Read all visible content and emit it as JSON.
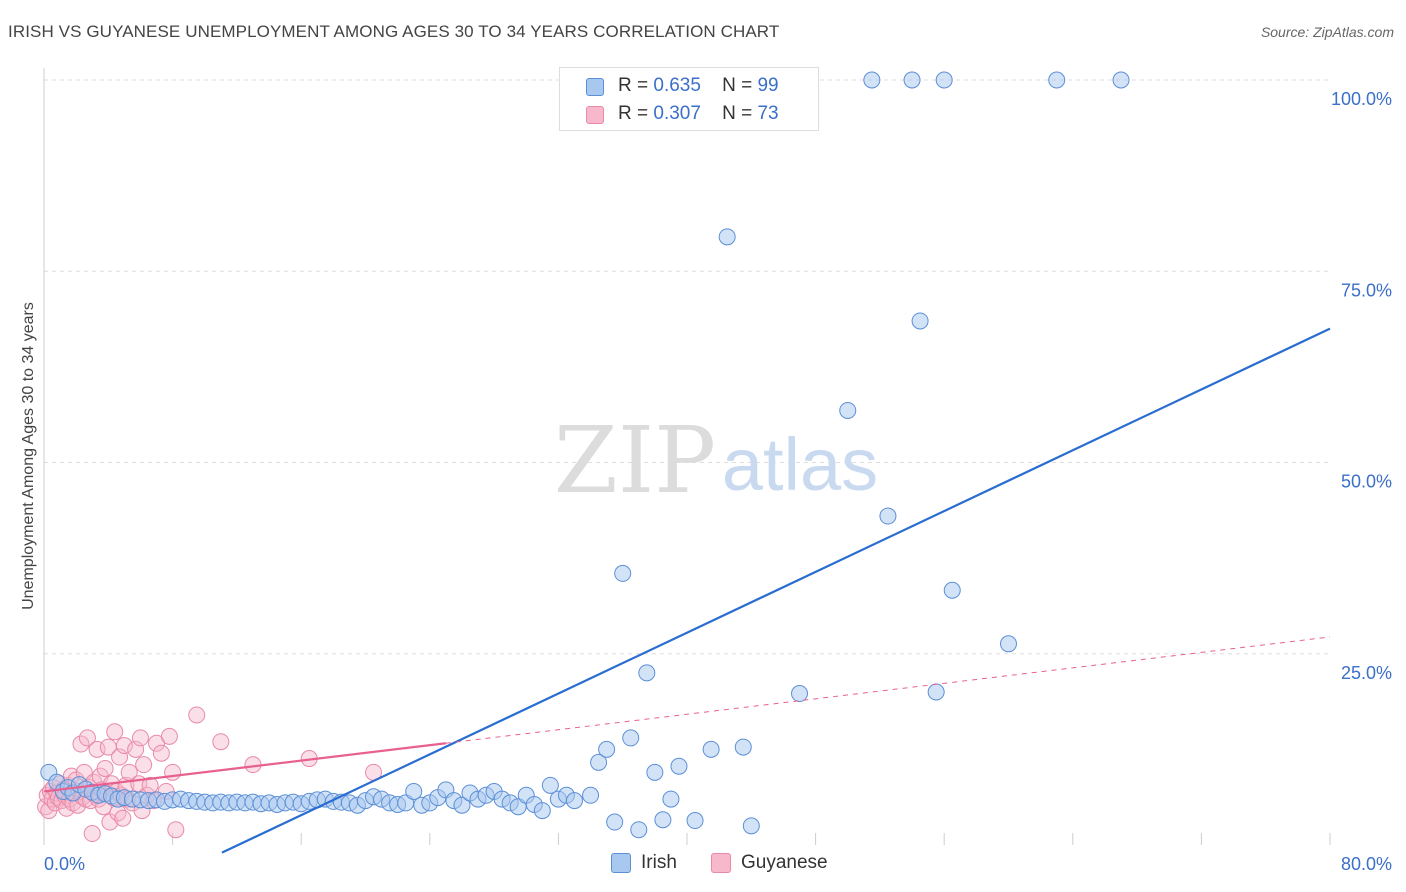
{
  "title": "IRISH VS GUYANESE UNEMPLOYMENT AMONG AGES 30 TO 34 YEARS CORRELATION CHART",
  "source": "Source: ZipAtlas.com",
  "watermark": {
    "zip": "ZIP",
    "atlas": "atlas"
  },
  "legend": {
    "irish": {
      "r_label": "R =",
      "r_value": "0.635",
      "n_label": "N =",
      "n_value": "99"
    },
    "guyanese": {
      "r_label": "R =",
      "r_value": "0.307",
      "n_label": "N =",
      "n_value": "73"
    }
  },
  "bottom_legend": {
    "irish": "Irish",
    "guyanese": "Guyanese"
  },
  "colors": {
    "irish_fill": "#a8c8f0",
    "irish_stroke": "#5b8fd6",
    "irish_line": "#2a6dd1",
    "guyanese_fill": "#f7b8cc",
    "guyanese_stroke": "#e88aa8",
    "guyanese_line": "#e8608e",
    "grid": "#dddddd",
    "axis_label": "#3b6fc9"
  },
  "chart_data": {
    "type": "scatter",
    "title": "IRISH VS GUYANESE UNEMPLOYMENT AMONG AGES 30 TO 34 YEARS CORRELATION CHART",
    "xlabel": "",
    "ylabel": "Unemployment Among Ages 30 to 34 years",
    "xlim": [
      0,
      80
    ],
    "ylim": [
      0,
      102
    ],
    "x_tick_labels": [
      {
        "value": 0,
        "label": "0.0%"
      },
      {
        "value": 80,
        "label": "80.0%"
      }
    ],
    "y_tick_labels": [
      {
        "value": 25,
        "label": "25.0%"
      },
      {
        "value": 50,
        "label": "50.0%"
      },
      {
        "value": 75,
        "label": "75.0%"
      },
      {
        "value": 100,
        "label": "100.0%"
      }
    ],
    "x_minor_ticks": [
      0,
      8,
      16,
      24,
      32,
      40,
      48,
      56,
      64,
      72,
      80
    ],
    "series": [
      {
        "name": "Irish",
        "trend": {
          "x": [
            0,
            80
          ],
          "y": [
            -12,
            67.5
          ],
          "style": "solid"
        },
        "points": [
          [
            0.3,
            9.5
          ],
          [
            0.8,
            8.2
          ],
          [
            1.2,
            7.0
          ],
          [
            1.5,
            7.5
          ],
          [
            1.8,
            6.8
          ],
          [
            2.2,
            7.9
          ],
          [
            2.6,
            7.3
          ],
          [
            3.0,
            6.9
          ],
          [
            3.4,
            6.5
          ],
          [
            3.8,
            6.7
          ],
          [
            4.2,
            6.4
          ],
          [
            4.6,
            6.0
          ],
          [
            5.0,
            6.2
          ],
          [
            5.5,
            6.0
          ],
          [
            6.0,
            5.9
          ],
          [
            6.5,
            5.8
          ],
          [
            7.0,
            5.9
          ],
          [
            7.5,
            5.7
          ],
          [
            8.0,
            5.9
          ],
          [
            8.5,
            6.0
          ],
          [
            9.0,
            5.8
          ],
          [
            9.5,
            5.7
          ],
          [
            10.0,
            5.6
          ],
          [
            10.5,
            5.5
          ],
          [
            11.0,
            5.6
          ],
          [
            11.5,
            5.5
          ],
          [
            12.0,
            5.6
          ],
          [
            12.5,
            5.5
          ],
          [
            13.0,
            5.6
          ],
          [
            13.5,
            5.4
          ],
          [
            14.0,
            5.5
          ],
          [
            14.5,
            5.3
          ],
          [
            15.0,
            5.5
          ],
          [
            15.5,
            5.6
          ],
          [
            16.0,
            5.4
          ],
          [
            16.5,
            5.7
          ],
          [
            17.0,
            5.9
          ],
          [
            17.5,
            6.0
          ],
          [
            18.0,
            5.7
          ],
          [
            18.5,
            5.6
          ],
          [
            19.0,
            5.5
          ],
          [
            19.5,
            5.2
          ],
          [
            20.0,
            5.8
          ],
          [
            20.5,
            6.3
          ],
          [
            21.0,
            6.0
          ],
          [
            21.5,
            5.5
          ],
          [
            22.0,
            5.3
          ],
          [
            22.5,
            5.5
          ],
          [
            23.0,
            7.0
          ],
          [
            23.5,
            5.2
          ],
          [
            24.0,
            5.5
          ],
          [
            24.5,
            6.2
          ],
          [
            25.0,
            7.2
          ],
          [
            25.5,
            5.8
          ],
          [
            26.0,
            5.2
          ],
          [
            26.5,
            6.8
          ],
          [
            27.0,
            6.0
          ],
          [
            27.5,
            6.5
          ],
          [
            28.0,
            7.0
          ],
          [
            28.5,
            6.0
          ],
          [
            29.0,
            5.5
          ],
          [
            29.5,
            5.0
          ],
          [
            30.0,
            6.5
          ],
          [
            30.5,
            5.3
          ],
          [
            31.0,
            4.5
          ],
          [
            31.5,
            7.8
          ],
          [
            32.0,
            6.0
          ],
          [
            32.5,
            6.5
          ],
          [
            33.0,
            5.8
          ],
          [
            34.0,
            6.5
          ],
          [
            34.5,
            10.8
          ],
          [
            35.0,
            12.5
          ],
          [
            35.5,
            3.0
          ],
          [
            36.0,
            35.5
          ],
          [
            36.5,
            14.0
          ],
          [
            37.0,
            2.0
          ],
          [
            37.5,
            22.5
          ],
          [
            38.0,
            9.5
          ],
          [
            38.5,
            3.3
          ],
          [
            39.0,
            6.0
          ],
          [
            39.5,
            10.3
          ],
          [
            40.5,
            3.2
          ],
          [
            41.5,
            12.5
          ],
          [
            42.0,
            100.0
          ],
          [
            42.5,
            79.5
          ],
          [
            43.5,
            12.8
          ],
          [
            44.0,
            2.5
          ],
          [
            47.0,
            19.8
          ],
          [
            50.0,
            56.8
          ],
          [
            51.5,
            100.0
          ],
          [
            52.5,
            43.0
          ],
          [
            54.0,
            100.0
          ],
          [
            54.5,
            68.5
          ],
          [
            55.5,
            20.0
          ],
          [
            56.0,
            100.0
          ],
          [
            56.5,
            33.3
          ],
          [
            60.0,
            26.3
          ],
          [
            63.0,
            100.0
          ],
          [
            67.0,
            100.0
          ]
        ]
      },
      {
        "name": "Guyanese",
        "trend": {
          "x": [
            0,
            25,
            80
          ],
          "y": [
            7.0,
            13.3,
            27.2
          ],
          "style": "solid-then-dashed",
          "solid_until_x": 25
        },
        "points": [
          [
            0.1,
            5.0
          ],
          [
            0.2,
            6.5
          ],
          [
            0.3,
            4.5
          ],
          [
            0.4,
            7.0
          ],
          [
            0.5,
            6.0
          ],
          [
            0.6,
            7.5
          ],
          [
            0.7,
            5.5
          ],
          [
            0.8,
            6.8
          ],
          [
            0.9,
            6.2
          ],
          [
            1.0,
            8.0
          ],
          [
            1.1,
            5.8
          ],
          [
            1.2,
            7.2
          ],
          [
            1.3,
            6.5
          ],
          [
            1.4,
            4.8
          ],
          [
            1.5,
            7.8
          ],
          [
            1.6,
            6.0
          ],
          [
            1.7,
            9.0
          ],
          [
            1.8,
            5.5
          ],
          [
            1.9,
            6.8
          ],
          [
            2.0,
            8.5
          ],
          [
            2.1,
            5.2
          ],
          [
            2.2,
            7.0
          ],
          [
            2.3,
            13.2
          ],
          [
            2.4,
            6.3
          ],
          [
            2.5,
            9.5
          ],
          [
            2.6,
            6.0
          ],
          [
            2.7,
            14.0
          ],
          [
            2.8,
            7.5
          ],
          [
            2.9,
            5.8
          ],
          [
            3.0,
            1.5
          ],
          [
            3.1,
            8.2
          ],
          [
            3.2,
            6.5
          ],
          [
            3.3,
            12.5
          ],
          [
            3.4,
            6.0
          ],
          [
            3.5,
            9.0
          ],
          [
            3.6,
            7.2
          ],
          [
            3.7,
            5.0
          ],
          [
            3.8,
            10.0
          ],
          [
            3.9,
            6.8
          ],
          [
            4.0,
            12.8
          ],
          [
            4.1,
            3.0
          ],
          [
            4.2,
            8.0
          ],
          [
            4.3,
            6.2
          ],
          [
            4.4,
            14.8
          ],
          [
            4.5,
            7.0
          ],
          [
            4.6,
            4.2
          ],
          [
            4.7,
            11.5
          ],
          [
            4.8,
            6.5
          ],
          [
            4.9,
            3.5
          ],
          [
            5.0,
            13.0
          ],
          [
            5.1,
            7.8
          ],
          [
            5.2,
            6.0
          ],
          [
            5.3,
            9.5
          ],
          [
            5.5,
            5.5
          ],
          [
            5.7,
            12.5
          ],
          [
            5.9,
            8.0
          ],
          [
            6.0,
            14.0
          ],
          [
            6.1,
            4.5
          ],
          [
            6.2,
            10.5
          ],
          [
            6.4,
            6.5
          ],
          [
            6.6,
            7.8
          ],
          [
            6.8,
            5.8
          ],
          [
            7.0,
            13.3
          ],
          [
            7.3,
            12.0
          ],
          [
            7.6,
            7.0
          ],
          [
            7.8,
            14.2
          ],
          [
            8.0,
            9.5
          ],
          [
            8.2,
            2.0
          ],
          [
            9.5,
            17.0
          ],
          [
            11.0,
            13.5
          ],
          [
            13.0,
            10.5
          ],
          [
            16.5,
            11.3
          ],
          [
            20.5,
            9.5
          ]
        ]
      }
    ]
  }
}
